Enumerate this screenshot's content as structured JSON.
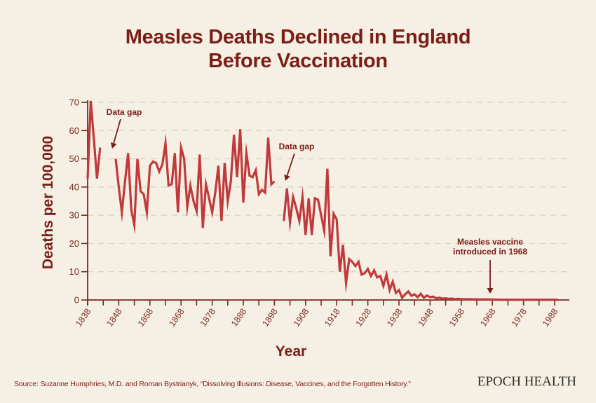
{
  "title_lines": [
    "Measles Deaths Declined in England",
    "Before Vaccination"
  ],
  "source": "Source: Suzanne Humphries, M.D. and Roman Bystrianyk, “Dissolving Illusions: Disease, Vaccines, and the Forgotten History.”",
  "brand": "EPOCH HEALTH",
  "colors": {
    "background": "#f6efe4",
    "line": "#c0393b",
    "text": "#7a1e17",
    "axis": "#7a2a1e",
    "grid": "#d9d0c4"
  },
  "chart_data": {
    "type": "line",
    "title": "Measles Deaths Declined in England Before Vaccination",
    "xlabel": "Year",
    "ylabel": "Deaths per 100,000",
    "xlim": [
      1838,
      1988
    ],
    "ylim": [
      0,
      70
    ],
    "xticks": [
      1838,
      1848,
      1858,
      1868,
      1878,
      1888,
      1898,
      1908,
      1918,
      1928,
      1938,
      1948,
      1958,
      1968,
      1978,
      1988
    ],
    "yticks": [
      0,
      10,
      20,
      30,
      40,
      50,
      60,
      70
    ],
    "grid": "horizontal dashed",
    "legend": "none",
    "segments": [
      {
        "x": [
          1838,
          1839,
          1840,
          1841,
          1842
        ],
        "y": [
          43,
          70.5,
          57,
          43,
          54
        ]
      },
      {
        "x": [
          1847,
          1848,
          1849,
          1850,
          1851,
          1852,
          1853,
          1854,
          1855,
          1856,
          1857,
          1858,
          1859,
          1860,
          1861,
          1862,
          1863,
          1864,
          1865,
          1866,
          1867,
          1868,
          1869,
          1870,
          1871,
          1872,
          1873,
          1874,
          1875,
          1876,
          1877,
          1878,
          1879,
          1880,
          1881,
          1882,
          1883,
          1884,
          1885,
          1886,
          1887,
          1888,
          1889,
          1890,
          1891,
          1892,
          1893,
          1894,
          1895,
          1896,
          1897,
          1898
        ],
        "y": [
          50,
          40,
          31,
          42,
          52,
          32,
          26.5,
          50,
          38.5,
          37.5,
          31,
          47.5,
          49,
          48.5,
          45.5,
          48,
          55.5,
          40.5,
          41,
          52,
          31,
          54,
          50,
          33,
          40.5,
          35,
          31.5,
          51.5,
          25.5,
          41,
          36,
          31,
          38,
          47.5,
          28,
          48.5,
          35,
          42,
          58.5,
          43.5,
          60.5,
          34.5,
          52,
          44,
          43.5,
          46,
          37.5,
          39,
          38,
          57.5,
          41,
          42
        ]
      },
      {
        "x": [
          1901,
          1902,
          1903,
          1904,
          1905,
          1906,
          1907,
          1908,
          1909,
          1910,
          1911,
          1912,
          1913,
          1914,
          1915,
          1916,
          1917,
          1918,
          1919,
          1920,
          1921,
          1922,
          1923,
          1924,
          1925,
          1926,
          1927,
          1928,
          1929,
          1930,
          1931,
          1932,
          1933,
          1934,
          1935,
          1936,
          1937,
          1938,
          1939,
          1940,
          1941,
          1942,
          1943,
          1944,
          1945,
          1946,
          1947,
          1948,
          1949,
          1950,
          1951,
          1952,
          1953,
          1954,
          1955,
          1956,
          1957,
          1958,
          1959,
          1960,
          1961,
          1962,
          1963,
          1964,
          1965,
          1966,
          1967,
          1968,
          1969,
          1970,
          1971,
          1972,
          1973,
          1974,
          1975,
          1976,
          1977,
          1978,
          1979,
          1980,
          1981,
          1982,
          1983,
          1984,
          1985,
          1986,
          1987,
          1988,
          1989
        ],
        "y": [
          28,
          39.5,
          27.5,
          36.5,
          32.5,
          28,
          36.5,
          23,
          36,
          23,
          36,
          35.5,
          30,
          24.5,
          46.5,
          15.5,
          30.5,
          28.5,
          10,
          19.5,
          6,
          14.5,
          13.5,
          12,
          13.5,
          9,
          9.5,
          11,
          8.5,
          10.5,
          8,
          8.5,
          5,
          9,
          3.5,
          6.5,
          2.5,
          3.5,
          0.8,
          2,
          3,
          1.5,
          2,
          1,
          2.2,
          0.8,
          1.6,
          1,
          1.2,
          0.6,
          0.8,
          0.5,
          0.6,
          0.4,
          0.5,
          0.3,
          0.4,
          0.3,
          0.3,
          0.25,
          0.3,
          0.2,
          0.25,
          0.2,
          0.2,
          0.2,
          0.2,
          0.15,
          0.15,
          0.1,
          0.1,
          0.1,
          0.1,
          0.1,
          0.1,
          0.1,
          0.1,
          0.1,
          0.1,
          0.1,
          0.1,
          0.1,
          0.1,
          0.1,
          0.1,
          0.1,
          0.1,
          0.1,
          0.1
        ]
      }
    ],
    "annotations": [
      {
        "text": "Data gap",
        "x": 1845,
        "y": 53
      },
      {
        "text": "Data gap",
        "x": 1901,
        "y": 41.5
      },
      {
        "text_lines": [
          "Measles vaccine",
          "introduced in 1968"
        ],
        "x": 1968,
        "y": 0.5
      }
    ]
  }
}
